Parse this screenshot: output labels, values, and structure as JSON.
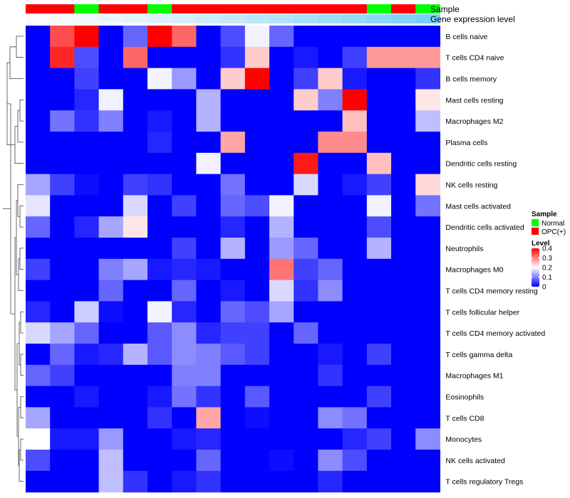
{
  "chart_data": {
    "type": "heatmap",
    "annotation_tracks": {
      "sample_title": "Sample",
      "gene_title": "Gene expression level",
      "sample": [
        "OPC(+)",
        "OPC(+)",
        "Normal",
        "OPC(+)",
        "OPC(+)",
        "Normal",
        "OPC(+)",
        "OPC(+)",
        "OPC(+)",
        "OPC(+)",
        "OPC(+)",
        "OPC(+)",
        "OPC(+)",
        "OPC(+)",
        "Normal",
        "OPC(+)",
        "Normal"
      ],
      "gene_level": [
        0.02,
        0.05,
        0.08,
        0.12,
        0.16,
        0.2,
        0.25,
        0.3,
        0.36,
        0.42,
        0.48,
        0.54,
        0.6,
        0.66,
        0.72,
        0.78,
        0.84
      ]
    },
    "rows": [
      "B cells naive",
      "T cells CD4 naive",
      "B cells memory",
      "Mast cells resting",
      "Macrophages M2",
      "Plasma cells",
      "Dendritic cells resting",
      "NK cells resting",
      "Mast cells activated",
      "Dendritic cells activated",
      "Neutrophils",
      "Macrophages M0",
      "T cells CD4 memory resting",
      "T cells follicular helper",
      "T cells CD4 memory activated",
      "T cells gamma delta",
      "Macrophages M1",
      "Eosinophils",
      "T cells CD8",
      "Monocytes",
      "NK cells activated",
      "T cells regulatory  Tregs"
    ],
    "values": [
      [
        0,
        0.34,
        0.4,
        0,
        0.08,
        0.4,
        0.32,
        0,
        0.06,
        0.19,
        0.08,
        0,
        0,
        0,
        0,
        0,
        0
      ],
      [
        0,
        0.37,
        0.06,
        0,
        0.32,
        0,
        0,
        0,
        0.04,
        0.24,
        0,
        0.02,
        0,
        0.05,
        0.28,
        0.28,
        0.28
      ],
      [
        0,
        0,
        0.05,
        0,
        0,
        0.19,
        0.12,
        0,
        0.24,
        0.4,
        0,
        0.05,
        0.24,
        0.02,
        0,
        0,
        0.04
      ],
      [
        0,
        0,
        0.03,
        0.19,
        0,
        0,
        0,
        0.14,
        0,
        0,
        0,
        0.24,
        0.1,
        0.4,
        0,
        0,
        0.22
      ],
      [
        0,
        0.09,
        0.04,
        0.1,
        0,
        0.02,
        0,
        0.14,
        0,
        0,
        0,
        0,
        0,
        0.25,
        0,
        0,
        0.15
      ],
      [
        0,
        0,
        0,
        0,
        0,
        0.03,
        0,
        0,
        0.27,
        0,
        0,
        0,
        0.29,
        0.29,
        0,
        0,
        0
      ],
      [
        0,
        0,
        0,
        0,
        0,
        0,
        0,
        0.19,
        0,
        0,
        0,
        0.38,
        0,
        0,
        0.25,
        0,
        0
      ],
      [
        0.13,
        0.05,
        0.01,
        0,
        0.05,
        0.04,
        0,
        0,
        0.09,
        0,
        0,
        0.17,
        0,
        0.02,
        0.05,
        0,
        0.23
      ],
      [
        0.18,
        0,
        0,
        0,
        0.17,
        0,
        0.05,
        0,
        0.08,
        0.06,
        0.19,
        0,
        0,
        0,
        0.19,
        0,
        0.09
      ],
      [
        0.08,
        0,
        0.03,
        0.13,
        0.22,
        0,
        0,
        0,
        0.03,
        0,
        0.14,
        0,
        0,
        0,
        0.06,
        0,
        0
      ],
      [
        0,
        0,
        0,
        0,
        0,
        0,
        0.05,
        0,
        0.14,
        0,
        0.12,
        0.08,
        0,
        0,
        0.14,
        0,
        0
      ],
      [
        0.05,
        0,
        0,
        0.1,
        0.13,
        0.02,
        0.03,
        0.02,
        0,
        0,
        0.31,
        0.05,
        0.08,
        0,
        0,
        0,
        0
      ],
      [
        0,
        0,
        0,
        0.08,
        0,
        0,
        0.08,
        0,
        0.02,
        0,
        0.17,
        0.04,
        0.11,
        0,
        0,
        0,
        0
      ],
      [
        0.03,
        0,
        0.16,
        0.01,
        0,
        0.19,
        0.03,
        0,
        0.08,
        0.06,
        0.13,
        0,
        0,
        0,
        0,
        0,
        0
      ],
      [
        0.17,
        0.13,
        0.08,
        0,
        0,
        0.07,
        0.11,
        0.03,
        0.05,
        0.05,
        0,
        0.08,
        0,
        0,
        0,
        0,
        0
      ],
      [
        0,
        0.08,
        0.02,
        0.03,
        0.14,
        0.07,
        0.11,
        0.1,
        0.07,
        0.05,
        0,
        0,
        0.02,
        0,
        0.05,
        0,
        0
      ],
      [
        0.08,
        0.05,
        0,
        0,
        0,
        0,
        0.1,
        0.1,
        0,
        0,
        0,
        0,
        0.04,
        0,
        0,
        0,
        0
      ],
      [
        0,
        0,
        0.02,
        0,
        0,
        0.02,
        0.09,
        0.04,
        0,
        0.07,
        0,
        0,
        0,
        0,
        0.05,
        0,
        0
      ],
      [
        0.13,
        0,
        0,
        0,
        0,
        0.04,
        0,
        0.27,
        0,
        0.01,
        0,
        0,
        0.11,
        0.09,
        0,
        0,
        0
      ],
      [
        0.2,
        0.02,
        0.02,
        0.12,
        0,
        0,
        0.02,
        0.03,
        0,
        0,
        0,
        0,
        0,
        0.03,
        0.05,
        0,
        0.11
      ],
      [
        0.06,
        0,
        0,
        0.15,
        0,
        0,
        0,
        0.08,
        0,
        0,
        0.01,
        0,
        0.11,
        0.06,
        0,
        0,
        0
      ],
      [
        0,
        0,
        0,
        0.15,
        0.04,
        0,
        0.02,
        0.04,
        0,
        0,
        0,
        0,
        0.03,
        0,
        0,
        0,
        0
      ]
    ],
    "colorscale": {
      "low": "#0000ff",
      "mid": "#ffffff",
      "high": "#ff0000",
      "min": 0,
      "mid_value": 0.2,
      "max": 0.4
    },
    "clustering": "rows clustered (dendrogram at left); columns not clustered",
    "legend": {
      "sample_title": "Sample",
      "sample_entries": [
        {
          "label": "Normal",
          "color": "#00ff00"
        },
        {
          "label": "OPC(+)",
          "color": "#ff0000"
        }
      ],
      "level_title": "Level",
      "level_ticks": [
        "0",
        "0.1",
        "0.2",
        "0.3",
        "0.4"
      ],
      "level_tick_values": [
        0,
        0.1,
        0.2,
        0.3,
        0.4
      ],
      "position": "right"
    }
  }
}
